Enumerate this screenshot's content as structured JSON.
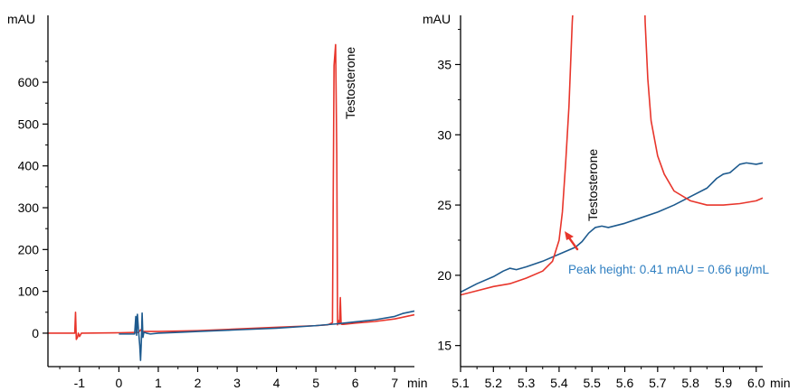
{
  "colors": {
    "red_trace": "#e8352b",
    "blue_trace": "#1d5a8e",
    "annotation_blue": "#2f7fc1",
    "axis": "#000000",
    "background": "#ffffff"
  },
  "chart_data": [
    {
      "type": "line",
      "panel": "full-chromatogram",
      "title": "",
      "xlabel": "min",
      "ylabel": "mAU",
      "xlim": [
        -1.8,
        7.5
      ],
      "ylim": [
        -80,
        760
      ],
      "x_ticks": [
        -1,
        0,
        1,
        2,
        3,
        4,
        5,
        6,
        7
      ],
      "y_ticks": [
        0,
        100,
        200,
        300,
        400,
        500,
        600
      ],
      "grid": false,
      "legend": "none",
      "annotations": [
        {
          "label": "Testosterone",
          "x": 5.5,
          "y": 690,
          "orientation": "vertical"
        }
      ],
      "series": [
        {
          "color": "red",
          "x": [
            -1.8,
            -1.12,
            -1.1,
            -1.08,
            -1.05,
            -1.03,
            -1.0,
            -0.95,
            -0.9,
            0.0,
            0.5,
            0.55,
            0.6,
            0.7,
            1.0,
            2.0,
            3.0,
            4.0,
            5.0,
            5.3,
            5.42,
            5.46,
            5.5,
            5.53,
            5.55,
            5.58,
            5.6,
            5.62,
            5.64,
            5.66,
            5.7,
            6.0,
            6.5,
            7.0,
            7.5
          ],
          "y": [
            0,
            0,
            50,
            -15,
            -10,
            0,
            -8,
            0,
            0,
            1,
            2,
            8,
            4,
            4,
            4,
            6,
            10,
            14,
            18,
            20,
            25,
            640,
            690,
            430,
            20,
            30,
            22,
            85,
            22,
            21,
            21,
            24,
            28,
            34,
            44
          ]
        },
        {
          "color": "blue",
          "x": [
            0.0,
            0.4,
            0.43,
            0.45,
            0.47,
            0.5,
            0.53,
            0.55,
            0.57,
            0.59,
            0.61,
            0.63,
            0.65,
            0.7,
            0.8,
            1.0,
            1.5,
            2.0,
            3.0,
            4.0,
            5.0,
            5.5,
            6.0,
            6.5,
            7.0,
            7.2,
            7.5
          ],
          "y": [
            -2,
            -2,
            40,
            -5,
            45,
            5,
            -30,
            -65,
            -20,
            48,
            -10,
            0,
            2,
            0,
            -2,
            0,
            2,
            4,
            8,
            12,
            18,
            22,
            27,
            32,
            40,
            47,
            53
          ]
        }
      ]
    },
    {
      "type": "line",
      "panel": "zoomed-chromatogram",
      "title": "",
      "xlabel": "min",
      "ylabel": "mAU",
      "xlim": [
        5.1,
        6.02
      ],
      "ylim": [
        13.5,
        38.5
      ],
      "x_ticks": [
        5.1,
        5.2,
        5.3,
        5.4,
        5.5,
        5.6,
        5.7,
        5.8,
        5.9,
        6.0
      ],
      "x_tick_labels": [
        "5.1",
        "5.2",
        "5.3",
        "5.4",
        "5.5",
        "5.6",
        "5.7",
        "5.8",
        "5.9",
        "6.0"
      ],
      "y_ticks": [
        15,
        20,
        25,
        30,
        35
      ],
      "grid": false,
      "legend": "none",
      "annotations": [
        {
          "label": "Testosterone",
          "x": 5.5,
          "y": 25,
          "orientation": "vertical"
        },
        {
          "label": "Peak height: 0.41 mAU = 0.66 µg/mL",
          "x": 5.53,
          "y": 22.6,
          "arrow": true
        }
      ],
      "series": [
        {
          "color": "blue",
          "x": [
            5.1,
            5.15,
            5.2,
            5.23,
            5.25,
            5.27,
            5.3,
            5.35,
            5.4,
            5.45,
            5.47,
            5.49,
            5.51,
            5.53,
            5.55,
            5.6,
            5.65,
            5.7,
            5.75,
            5.8,
            5.85,
            5.88,
            5.9,
            5.92,
            5.95,
            5.97,
            6.0,
            6.02
          ],
          "y": [
            18.8,
            19.4,
            19.9,
            20.3,
            20.5,
            20.4,
            20.6,
            21.0,
            21.5,
            22.0,
            22.4,
            23.0,
            23.4,
            23.5,
            23.4,
            23.7,
            24.1,
            24.5,
            25.0,
            25.6,
            26.2,
            26.9,
            27.2,
            27.3,
            27.9,
            28.0,
            27.9,
            28.0
          ]
        },
        {
          "color": "red",
          "x": [
            5.1,
            5.15,
            5.2,
            5.25,
            5.3,
            5.35,
            5.38,
            5.4,
            5.41,
            5.42,
            5.43,
            5.435,
            5.44,
            5.445,
            5.66,
            5.662,
            5.67,
            5.68,
            5.7,
            5.72,
            5.75,
            5.8,
            5.85,
            5.9,
            5.95,
            6.0,
            6.02
          ],
          "y": [
            18.6,
            18.9,
            19.2,
            19.4,
            19.8,
            20.3,
            21.0,
            22.5,
            24.5,
            28.0,
            32.0,
            35.0,
            38.0,
            40.0,
            40.0,
            38.0,
            34.0,
            31.0,
            28.5,
            27.2,
            26.0,
            25.3,
            25.0,
            25.0,
            25.1,
            25.3,
            25.5
          ]
        }
      ]
    }
  ]
}
